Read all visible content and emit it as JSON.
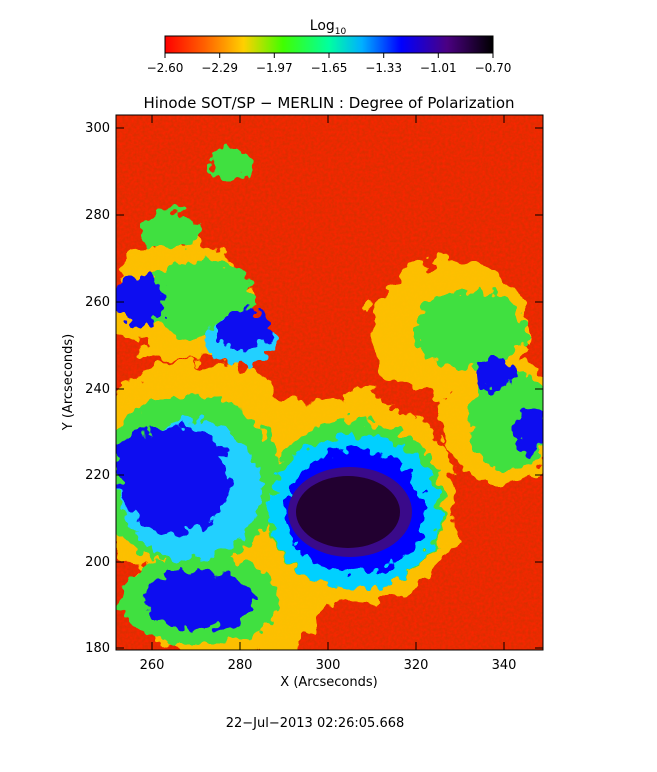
{
  "colorbar": {
    "title": "Log",
    "title_subscript": "10",
    "tick_labels": [
      "−2.60",
      "−2.29",
      "−1.97",
      "−1.65",
      "−1.33",
      "−1.01",
      "−0.70"
    ],
    "colors": [
      "#ff0000",
      "#ff8000",
      "#ffff00",
      "#00ff00",
      "#00ffff",
      "#0000ff",
      "#4b0082",
      "#000000"
    ]
  },
  "plot": {
    "title": "Hinode SOT/SP − MERLIN : Degree of Polarization",
    "xlabel": "X (Arcseconds)",
    "ylabel": "Y (Arcseconds)",
    "x_ticks": [
      "260",
      "280",
      "300",
      "320",
      "340"
    ],
    "y_ticks": [
      "180",
      "200",
      "220",
      "240",
      "260",
      "280",
      "300"
    ]
  },
  "footer": {
    "timestamp": "22−Jul−2013 02:26:05.668"
  }
}
